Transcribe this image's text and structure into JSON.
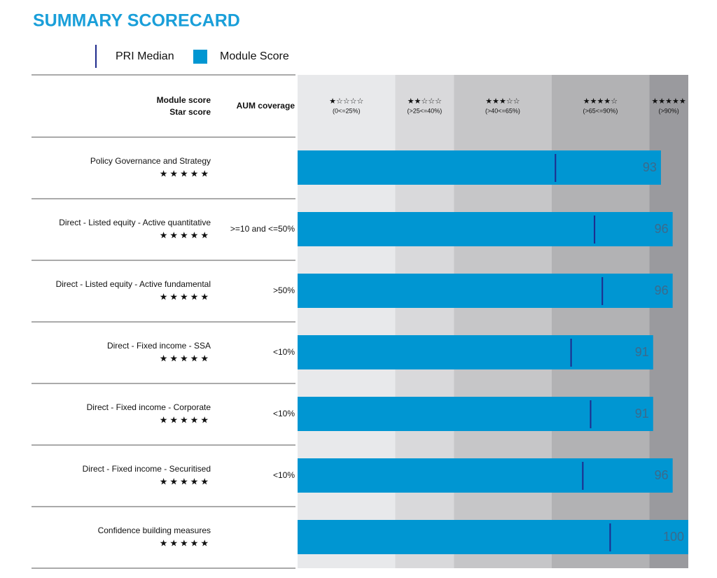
{
  "chart_data": {
    "type": "bar",
    "orientation": "horizontal",
    "title": "SUMMARY SCORECARD",
    "columns": [
      "Module score",
      "Star score",
      "AUM coverage"
    ],
    "categories": [
      "Policy Governance and Strategy",
      "Direct - Listed equity - Active quantitative",
      "Direct - Listed equity - Active fundamental",
      "Direct - Fixed income - SSA",
      "Direct - Fixed income - Corporate",
      "Direct - Fixed income - Securitised",
      "Confidence building measures"
    ],
    "star_scores": [
      "★★★★★",
      "★★★★★",
      "★★★★★",
      "★★★★★",
      "★★★★★",
      "★★★★★",
      "★★★★★"
    ],
    "aum_coverage": [
      null,
      ">=10 and <=50%",
      ">50%",
      "<10%",
      "<10%",
      "<10%",
      null
    ],
    "series": [
      {
        "name": "Module Score",
        "color": "#0096d2",
        "values": [
          93,
          96,
          96,
          91,
          91,
          96,
          100
        ]
      },
      {
        "name": "PRI Median",
        "color": "#1f2a8c",
        "values": [
          66,
          76,
          78,
          70,
          75,
          73,
          80
        ]
      }
    ],
    "bands": {
      "edges": [
        0,
        25,
        40,
        65,
        90,
        100
      ],
      "stars": [
        "★☆☆☆☆",
        "★★☆☆☆",
        "★★★☆☆",
        "★★★★☆",
        "★★★★★"
      ],
      "labels": [
        "(0<=25%)",
        "(>25<=40%)",
        "(>40<=65%)",
        "(>65<=90%)",
        "(>90%)"
      ],
      "colors": [
        "#e8e9eb",
        "#d9d9db",
        "#c6c6c8",
        "#b2b2b4",
        "#9a9a9e"
      ]
    },
    "xlim": [
      0,
      100
    ]
  }
}
